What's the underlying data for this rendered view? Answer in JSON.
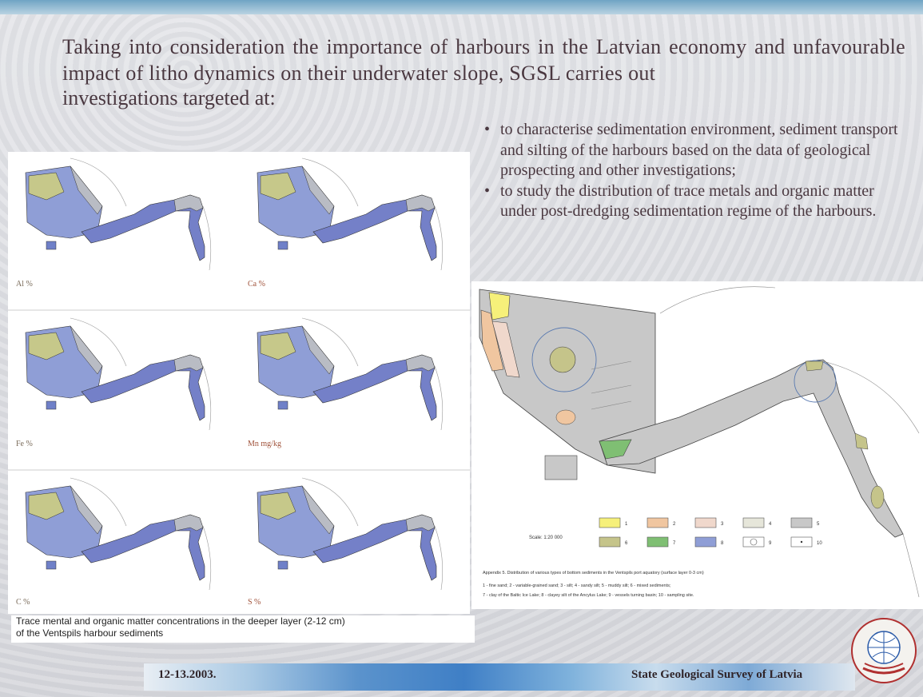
{
  "intro": {
    "text": "Taking into consideration the importance of harbours in the Latvian economy and unfavourable impact of litho dynamics on their underwater slope, SGSL carries out",
    "line3": "investigations targeted at:"
  },
  "bullets": [
    "to characterise sedimentation environment, sediment transport and silting of the harbours based on the data of geological prospecting and other investigations;",
    "to study the distribution of trace metals and organic matter under post-dredging sedimentation regime of the harbours."
  ],
  "maps": {
    "labels": [
      "Al %",
      "Ca %",
      "Fe %",
      "Mn mg/kg",
      "C %",
      "S %"
    ]
  },
  "caption": {
    "line1": "Trace mental and organic matter concentrations in the deeper layer (2-12 cm)",
    "line2": "of the Ventspils harbour sediments"
  },
  "sediment_map": {
    "scale": "Scale: 1:20 000",
    "legend": [
      "1",
      "2",
      "3",
      "4",
      "5",
      "6",
      "7",
      "8",
      "9",
      "10"
    ],
    "legend_colors": [
      "#f6f07a",
      "#f0c6a0",
      "#f0d8cc",
      "#e6e6da",
      "#c8c8c8",
      "#c5c48a",
      "#7fbf73",
      "#8f9ed6",
      "#ffffff",
      "#ffffff"
    ],
    "caption_title": "Appendix 5.  Distribution of various types of bottom sediments in the Ventspils port aquatory (surface layer 0-3 cm)",
    "caption_line1": "1 - fine sand; 2 - variable-grained sand; 3 - silt; 4 - sandy silt; 5 - muddy silt; 6 - mixed sediments;",
    "caption_line2": "7 - clay of the Baltic Ice Lake; 8 - clayey silt of the Ancylus Lake; 9 - vessels turning basin; 10 - sampling site."
  },
  "footer": {
    "date": "12-13.2003.",
    "organization": "State Geological Survey of Latvia"
  },
  "colors": {
    "text": "#4a3840",
    "map_blue": "#6f80c8",
    "map_grey": "#b9bcc4",
    "map_yellow": "#c6c88a"
  }
}
